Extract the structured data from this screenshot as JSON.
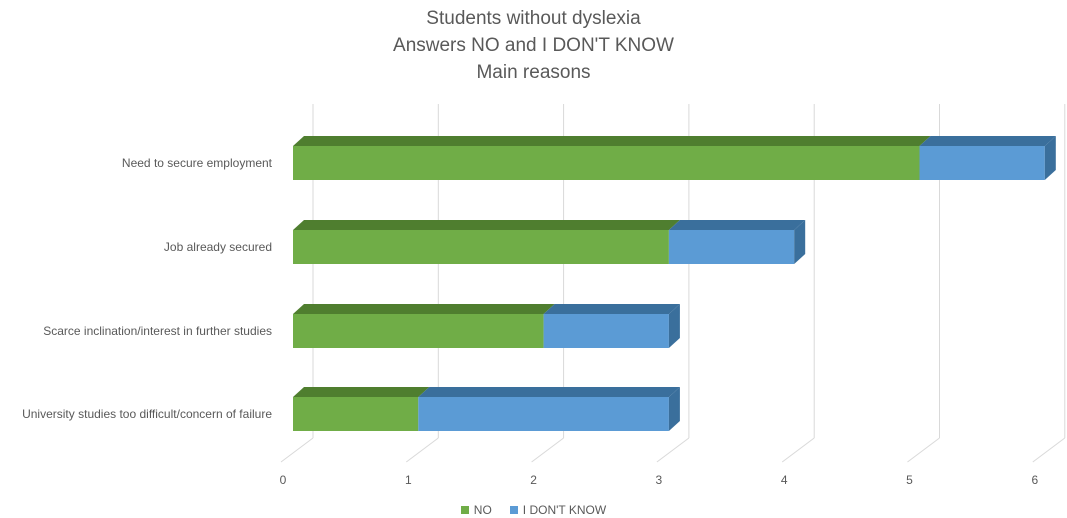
{
  "chart_data": {
    "type": "bar",
    "orientation": "horizontal",
    "stacked": true,
    "three_d": true,
    "title": [
      "Students without dyslexia",
      "Answers NO and I DON'T KNOW",
      "Main reasons"
    ],
    "categories": [
      "Need to secure employment",
      "Job already secured",
      "Scarce inclination/interest in further studies",
      "University studies too difficult/concern of failure"
    ],
    "series": [
      {
        "name": "NO",
        "values": [
          5,
          3,
          2,
          1
        ],
        "color": "#70ad47",
        "top_color": "#4f7e2f"
      },
      {
        "name": "I DON'T KNOW",
        "values": [
          1,
          1,
          1,
          2
        ],
        "color": "#5b9bd5",
        "top_color": "#3a6f9c"
      }
    ],
    "xlim": [
      0,
      6
    ],
    "x_ticks": [
      "0",
      "1",
      "2",
      "3",
      "4",
      "5",
      "6"
    ],
    "grid": true,
    "legend_position": "bottom"
  }
}
